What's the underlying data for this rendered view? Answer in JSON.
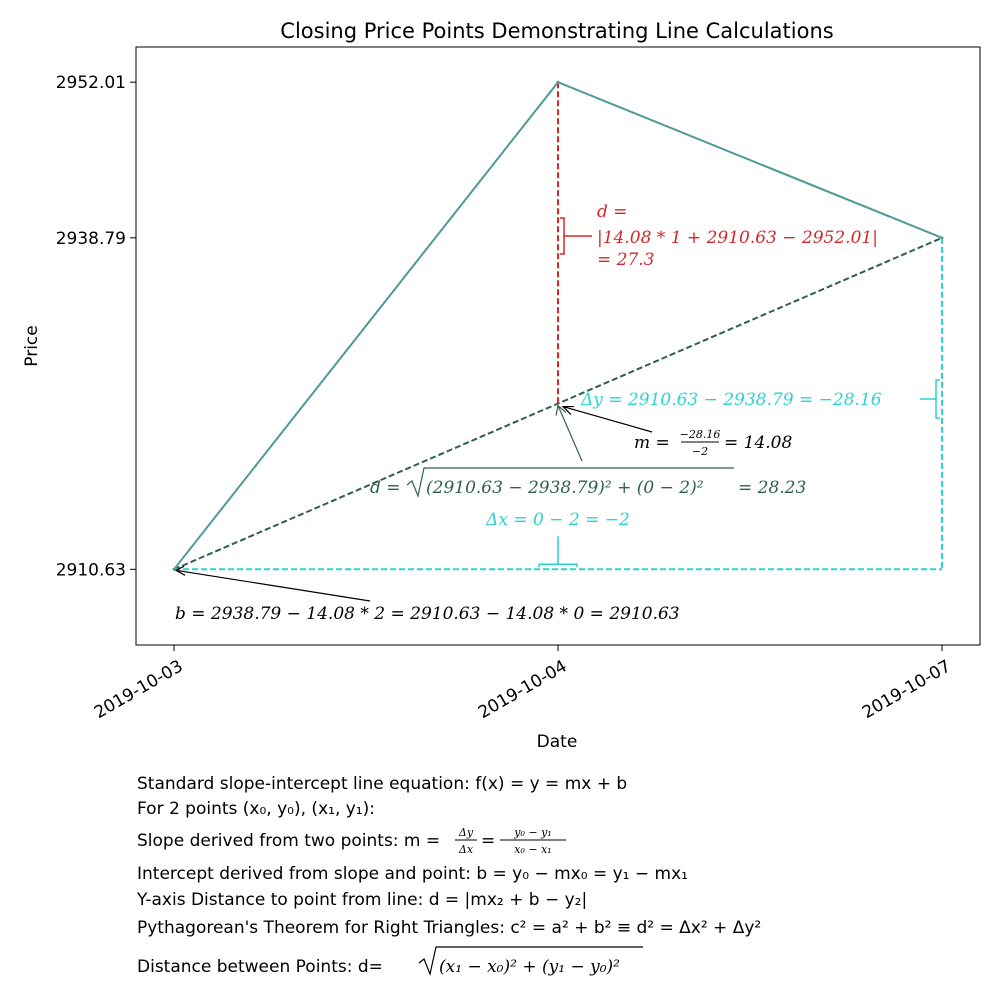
{
  "chart_data": {
    "type": "line",
    "title": "Closing Price Points Demonstrating Line Calculations",
    "xlabel": "Date",
    "ylabel": "Price",
    "x": [
      "2019-10-03",
      "2019-10-04",
      "2019-10-07"
    ],
    "series": [
      {
        "values": [
          2910.63,
          2952.01,
          2938.79
        ]
      }
    ],
    "x_tick_labels": [
      "2019-10-03",
      "2019-10-04",
      "2019-10-07"
    ],
    "y_tick_labels": [
      "2910.63",
      "2938.79",
      "2952.01"
    ],
    "ylim": [
      2904.2,
      2955.0
    ],
    "grid": false,
    "colors": {
      "price_line": "#4f9999",
      "fitted_line": "#2f5f4f",
      "vertical_distance": "#d62728",
      "delta": "#2ad4d4",
      "annotation": "#000000"
    },
    "annotations": {
      "distance_label": [
        "d =",
        "|14.08 * 1 + 2910.63 − 2952.01|",
        "= 27.3"
      ],
      "delta_y": "Δy = 2910.63 − 2938.79 = −28.16",
      "slope_prefix": "m =",
      "slope_num": "−28.16",
      "slope_den": "−2",
      "slope_suffix": "= 14.08",
      "hyp_prefix": "d =",
      "hyp_radicand": "(2910.63 − 2938.79)² + (0 − 2)²",
      "hyp_suffix": "= 28.23",
      "delta_x": "Δx = 0 − 2 = −2",
      "intercept": "b = 2938.79 − 14.08 * 2 = 2910.63 − 14.08 * 0 = 2910.63"
    }
  },
  "notes": {
    "line1": "Standard slope-intercept line equation: f(x) = y = mx + b",
    "line2": "For 2 points (x₀, y₀), (x₁, y₁):",
    "line3_prefix": "Slope derived from two points: m =",
    "line3_frac1_num": "Δy",
    "line3_frac1_den": "Δx",
    "line3_frac2_num": "y₀ − y₁",
    "line3_frac2_den": "x₀ − x₁",
    "line4": "Intercept derived from slope and point: b = y₀ − mx₀ = y₁ − mx₁",
    "line5": "Y-axis Distance to point from line: d = |mx₂ + b − y₂|",
    "line6": "Pythagorean's Theorem for Right Triangles: c² = a² + b² ≡  d² = Δx² + Δy²",
    "line7_prefix": "Distance between Points: d=",
    "line7_radicand": "(x₁ − x₀)² + (y₁ − y₀)²"
  }
}
